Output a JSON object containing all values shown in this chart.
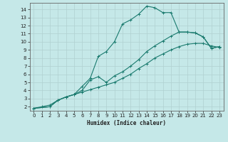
{
  "xlabel": "Humidex (Indice chaleur)",
  "bg_color": "#c5e8e8",
  "line_color": "#1a7a6e",
  "grid_color": "#b0d0d0",
  "xlim": [
    -0.5,
    23.5
  ],
  "ylim": [
    1.5,
    14.8
  ],
  "xticks": [
    0,
    1,
    2,
    3,
    4,
    5,
    6,
    7,
    8,
    9,
    10,
    11,
    12,
    13,
    14,
    15,
    16,
    17,
    18,
    19,
    20,
    21,
    22,
    23
  ],
  "yticks": [
    2,
    3,
    4,
    5,
    6,
    7,
    8,
    9,
    10,
    11,
    12,
    13,
    14
  ],
  "line1_x": [
    0,
    1,
    2,
    3,
    4,
    5,
    6,
    7,
    8,
    9,
    10,
    11,
    12,
    13,
    14,
    15,
    16,
    17,
    18,
    19,
    20,
    21,
    22,
    23
  ],
  "line1_y": [
    1.8,
    2.0,
    2.2,
    2.8,
    3.2,
    3.5,
    3.8,
    4.1,
    4.4,
    4.7,
    5.0,
    5.5,
    6.0,
    6.7,
    7.3,
    8.0,
    8.5,
    9.0,
    9.4,
    9.7,
    9.8,
    9.8,
    9.5,
    9.3
  ],
  "line2_x": [
    0,
    2,
    3,
    4,
    5,
    6,
    7,
    8,
    9,
    10,
    11,
    12,
    13,
    14,
    15,
    16,
    17,
    18,
    19,
    20,
    21,
    22,
    23
  ],
  "line2_y": [
    1.8,
    2.0,
    2.8,
    3.2,
    3.5,
    4.5,
    5.5,
    8.2,
    8.8,
    10.0,
    12.2,
    12.7,
    13.4,
    14.4,
    14.2,
    13.6,
    13.6,
    11.2,
    11.2,
    11.1,
    10.6,
    9.2,
    9.4
  ],
  "line3_x": [
    0,
    2,
    3,
    4,
    5,
    6,
    7,
    8,
    9,
    10,
    11,
    12,
    13,
    14,
    15,
    16,
    17,
    18,
    19,
    20,
    21,
    22,
    23
  ],
  "line3_y": [
    1.8,
    2.0,
    2.8,
    3.2,
    3.5,
    4.0,
    5.3,
    5.7,
    5.0,
    5.8,
    6.3,
    7.0,
    7.8,
    8.8,
    9.5,
    10.1,
    10.7,
    11.2,
    11.2,
    11.1,
    10.6,
    9.2,
    9.4
  ],
  "marker_size": 2.2,
  "line_width": 0.8,
  "tick_fontsize": 5.0,
  "xlabel_fontsize": 5.5
}
